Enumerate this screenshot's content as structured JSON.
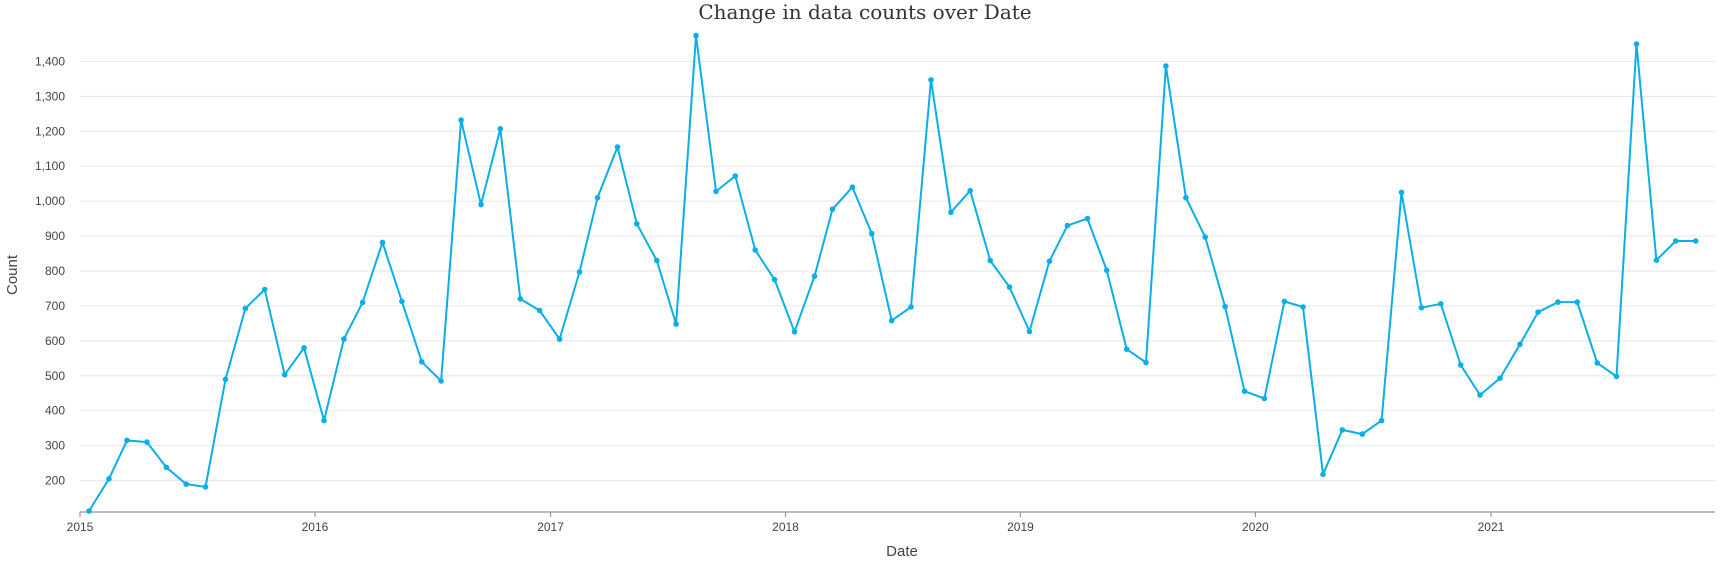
{
  "chart_data": {
    "type": "line",
    "title": "Change in data counts over Date",
    "xlabel": "Date",
    "ylabel": "Count",
    "ylim": [
      110,
      1490
    ],
    "xlim": [
      "2015-01-01",
      "2021-12-15"
    ],
    "x_ticks": [
      "2015",
      "2016",
      "2017",
      "2018",
      "2019",
      "2020",
      "2021"
    ],
    "y_ticks": [
      200,
      300,
      400,
      500,
      600,
      700,
      800,
      900,
      1000,
      1100,
      1200,
      1300,
      1400
    ],
    "y_tick_labels": [
      "200",
      "300",
      "400",
      "500",
      "600",
      "700",
      "800",
      "900",
      "1,000",
      "1,100",
      "1,200",
      "1,300",
      "1,400"
    ],
    "grid": true,
    "legend": "none",
    "color": "#0aaee8",
    "series": [
      {
        "x": [
          "2015-01-15",
          "2015-02-15",
          "2015-03-15",
          "2015-04-15",
          "2015-05-15",
          "2015-06-15",
          "2015-07-15",
          "2015-08-15",
          "2015-09-15",
          "2015-10-15",
          "2015-11-15",
          "2015-12-15",
          "2016-01-15",
          "2016-02-15",
          "2016-03-15",
          "2016-04-15",
          "2016-05-15",
          "2016-06-15",
          "2016-07-15",
          "2016-08-15",
          "2016-09-15",
          "2016-10-15",
          "2016-11-15",
          "2016-12-15",
          "2017-01-15",
          "2017-02-15",
          "2017-03-15",
          "2017-04-15",
          "2017-05-15",
          "2017-06-15",
          "2017-07-15",
          "2017-08-15",
          "2017-09-15",
          "2017-10-15",
          "2017-11-15",
          "2017-12-15",
          "2018-01-15",
          "2018-02-15",
          "2018-03-15",
          "2018-04-15",
          "2018-05-15",
          "2018-06-15",
          "2018-07-15",
          "2018-08-15",
          "2018-09-15",
          "2018-10-15",
          "2018-11-15",
          "2018-12-15",
          "2019-01-15",
          "2019-02-15",
          "2019-03-15",
          "2019-04-15",
          "2019-05-15",
          "2019-06-15",
          "2019-07-15",
          "2019-08-15",
          "2019-09-15",
          "2019-10-15",
          "2019-11-15",
          "2019-12-15",
          "2020-01-15",
          "2020-02-15",
          "2020-03-15",
          "2020-04-15",
          "2020-05-15",
          "2020-06-15",
          "2020-07-15",
          "2020-08-15",
          "2020-09-15",
          "2020-10-15",
          "2020-11-15",
          "2020-12-15",
          "2021-01-15",
          "2021-02-15",
          "2021-03-15",
          "2021-04-15",
          "2021-05-15",
          "2021-06-15",
          "2021-07-15",
          "2021-08-15",
          "2021-09-15",
          "2021-10-15",
          "2021-11-15"
        ],
        "values": [
          113,
          205,
          315,
          310,
          238,
          190,
          182,
          490,
          693,
          747,
          503,
          580,
          372,
          605,
          710,
          882,
          713,
          540,
          485,
          1232,
          990,
          1207,
          720,
          687,
          605,
          797,
          1010,
          1155,
          935,
          830,
          648,
          1474,
          1028,
          1072,
          860,
          775,
          626,
          785,
          977,
          1040,
          907,
          658,
          697,
          1347,
          968,
          1030,
          830,
          754,
          627,
          828,
          930,
          950,
          802,
          576,
          538,
          1387,
          1010,
          897,
          698,
          456,
          435,
          713,
          697,
          218,
          345,
          333,
          372,
          1025,
          695,
          706,
          531,
          445,
          493,
          590,
          682,
          711,
          711,
          537,
          498,
          1450,
          831,
          886,
          886
        ]
      }
    ]
  }
}
